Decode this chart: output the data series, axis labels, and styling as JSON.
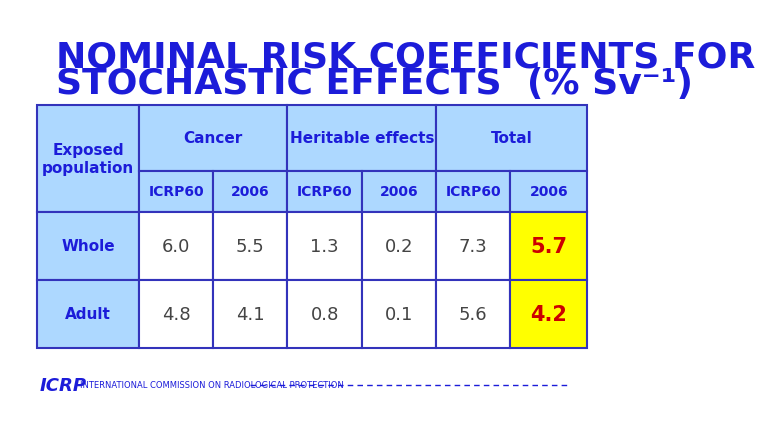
{
  "title_line1": "NOMINAL RISK COEFFICIENTS FOR",
  "title_line2": "STOCHASTIC EFFECTS  (% Sv⁻¹)",
  "title_color": "#1C1CD9",
  "background_color": "#FFFFFF",
  "table_header_bg": "#ADD8FF",
  "table_cell_bg": "#FFFFFF",
  "table_border_color": "#3333BB",
  "yellow_cell_color": "#FFFF00",
  "header_text_color": "#1C1CD9",
  "data_text_color": "#444444",
  "highlight_text_color": "#CC0000",
  "rows": [
    [
      "Whole",
      "6.0",
      "5.5",
      "1.3",
      "0.2",
      "7.3",
      "5.7"
    ],
    [
      "Adult",
      "4.8",
      "4.1",
      "0.8",
      "0.1",
      "5.6",
      "4.2"
    ]
  ],
  "footer_text": "INTERNATIONAL COMMISSION ON RADIOLOGICAL PROTECTION",
  "footer_color": "#1C1CD9",
  "icrp_logo_color": "#1C1CD9"
}
